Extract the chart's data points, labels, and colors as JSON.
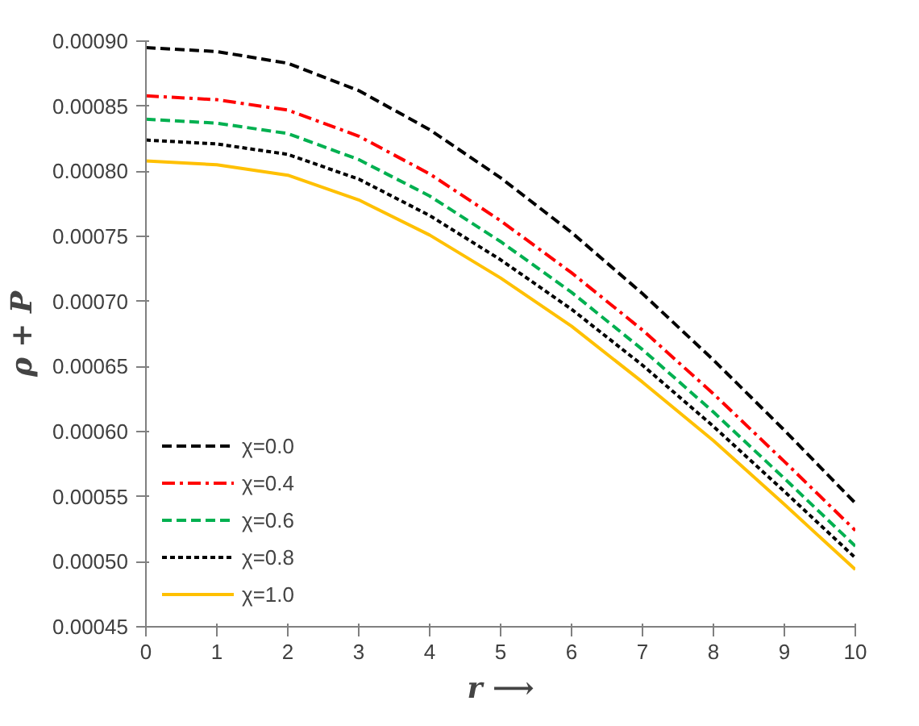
{
  "chart_data": {
    "type": "line",
    "xlabel": "r ⟶",
    "ylabel": "ρ + P",
    "x": [
      0,
      1,
      2,
      3,
      4,
      5,
      6,
      7,
      8,
      9,
      10
    ],
    "series": [
      {
        "name": "χ=0.0",
        "color": "#000000",
        "line_style": "dashed",
        "values": [
          0.000895,
          0.000892,
          0.000883,
          0.000862,
          0.000832,
          0.000795,
          0.000753,
          0.000706,
          0.000655,
          0.000601,
          0.000545
        ]
      },
      {
        "name": "χ=0.4",
        "color": "#ff0000",
        "line_style": "dashdot",
        "values": [
          0.000858,
          0.000855,
          0.000847,
          0.000827,
          0.000798,
          0.000762,
          0.000722,
          0.000678,
          0.000629,
          0.000577,
          0.000524
        ]
      },
      {
        "name": "χ=0.6",
        "color": "#00b050",
        "line_style": "dashed",
        "values": [
          0.00084,
          0.000837,
          0.000829,
          0.000809,
          0.000781,
          0.000746,
          0.000707,
          0.000663,
          0.000615,
          0.000564,
          0.000512
        ]
      },
      {
        "name": "χ=0.8",
        "color": "#000000",
        "line_style": "dotted",
        "values": [
          0.000824,
          0.000821,
          0.000813,
          0.000794,
          0.000766,
          0.000732,
          0.000694,
          0.000651,
          0.000604,
          0.000554,
          0.000503
        ]
      },
      {
        "name": "χ=1.0",
        "color": "#ffc000",
        "line_style": "solid",
        "values": [
          0.000808,
          0.000805,
          0.000797,
          0.000778,
          0.000751,
          0.000718,
          0.000681,
          0.000638,
          0.000593,
          0.000544,
          0.000494
        ]
      }
    ],
    "xlim": [
      0,
      10
    ],
    "xticks": [
      0,
      1,
      2,
      3,
      4,
      5,
      6,
      7,
      8,
      9,
      10
    ],
    "ylim": [
      0.00045,
      0.0009
    ],
    "yticks": [
      {
        "value": 0.00045,
        "label": "0.00045"
      },
      {
        "value": 0.0005,
        "label": "0.00050"
      },
      {
        "value": 0.00055,
        "label": "0.00055"
      },
      {
        "value": 0.0006,
        "label": "0.00060"
      },
      {
        "value": 0.00065,
        "label": "0.00065"
      },
      {
        "value": 0.0007,
        "label": "0.00070"
      },
      {
        "value": 0.00075,
        "label": "0.00075"
      },
      {
        "value": 0.0008,
        "label": "0.00080"
      },
      {
        "value": 0.00085,
        "label": "0.00085"
      },
      {
        "value": 0.0009,
        "label": "0.00090"
      }
    ],
    "grid": false,
    "legend": "bottom left"
  }
}
